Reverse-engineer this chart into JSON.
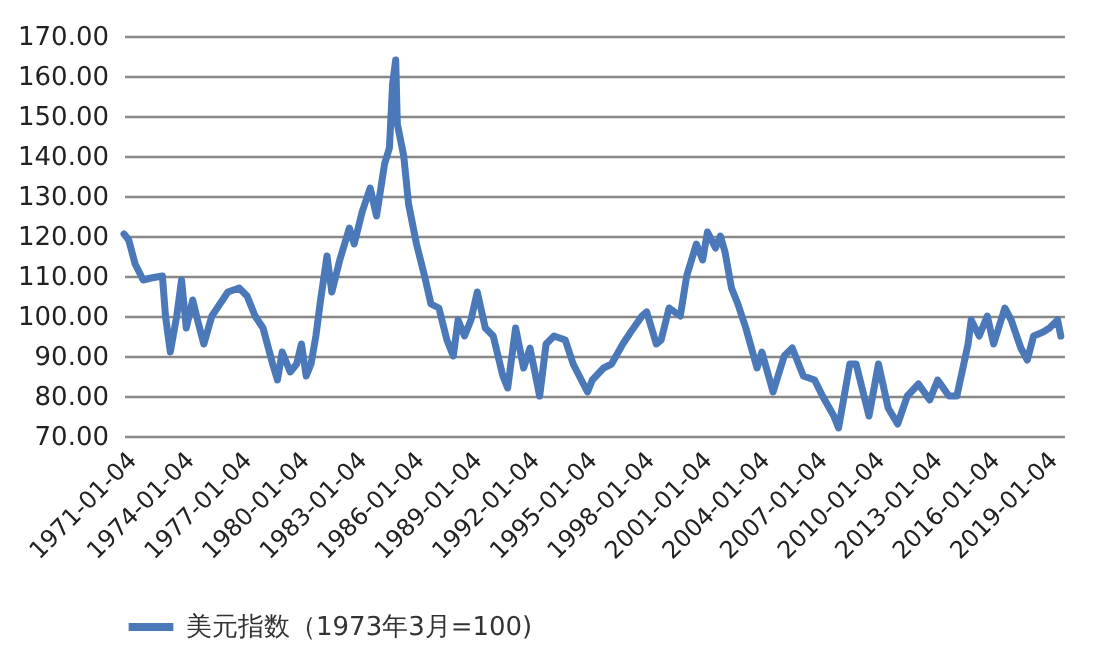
{
  "chart_data": {
    "type": "line",
    "legend": "bottom",
    "grid": "y",
    "marker": "none",
    "line_style": "solid",
    "ylim": [
      70,
      170
    ],
    "yticks": [
      {
        "value": 70,
        "label": "70.00"
      },
      {
        "value": 80,
        "label": "80.00"
      },
      {
        "value": 90,
        "label": "90.00"
      },
      {
        "value": 100,
        "label": "100.00"
      },
      {
        "value": 110,
        "label": "110.00"
      },
      {
        "value": 120,
        "label": "120.00"
      },
      {
        "value": 130,
        "label": "130.00"
      },
      {
        "value": 140,
        "label": "140.00"
      },
      {
        "value": 150,
        "label": "150.00"
      },
      {
        "value": 160,
        "label": "160.00"
      },
      {
        "value": 170,
        "label": "170.00"
      }
    ],
    "xlim": [
      "1971-01-01",
      "2020-01-01"
    ],
    "xticks": [
      {
        "value": "1971-01-04",
        "label": "1971-01-04"
      },
      {
        "value": "1974-01-04",
        "label": "1974-01-04"
      },
      {
        "value": "1977-01-04",
        "label": "1977-01-04"
      },
      {
        "value": "1980-01-04",
        "label": "1980-01-04"
      },
      {
        "value": "1983-01-04",
        "label": "1983-01-04"
      },
      {
        "value": "1986-01-04",
        "label": "1986-01-04"
      },
      {
        "value": "1989-01-04",
        "label": "1989-01-04"
      },
      {
        "value": "1992-01-04",
        "label": "1992-01-04"
      },
      {
        "value": "1995-01-04",
        "label": "1995-01-04"
      },
      {
        "value": "1998-01-04",
        "label": "1998-01-04"
      },
      {
        "value": "2001-01-04",
        "label": "2001-01-04"
      },
      {
        "value": "2004-01-04",
        "label": "2004-01-04"
      },
      {
        "value": "2007-01-04",
        "label": "2007-01-04"
      },
      {
        "value": "2010-01-04",
        "label": "2010-01-04"
      },
      {
        "value": "2013-01-04",
        "label": "2013-01-04"
      },
      {
        "value": "2016-01-04",
        "label": "2016-01-04"
      },
      {
        "value": "2019-01-04",
        "label": "2019-01-04"
      }
    ],
    "x": [
      "1971-01",
      "1971-04",
      "1971-08",
      "1972-01",
      "1972-06",
      "1973-01",
      "1973-03",
      "1973-06",
      "1973-10",
      "1974-01",
      "1974-04",
      "1974-08",
      "1974-11",
      "1975-03",
      "1975-08",
      "1976-01",
      "1976-06",
      "1977-01",
      "1977-06",
      "1977-11",
      "1978-04",
      "1978-10",
      "1979-01",
      "1979-04",
      "1979-09",
      "1980-01",
      "1980-04",
      "1980-07",
      "1980-10",
      "1981-01",
      "1981-04",
      "1981-08",
      "1981-11",
      "1982-04",
      "1982-10",
      "1983-01",
      "1983-06",
      "1983-11",
      "1984-03",
      "1984-08",
      "1984-11",
      "1985-01",
      "1985-03",
      "1985-04",
      "1985-08",
      "1985-11",
      "1986-04",
      "1986-09",
      "1987-01",
      "1987-06",
      "1987-11",
      "1988-03",
      "1988-06",
      "1988-10",
      "1989-02",
      "1989-06",
      "1989-11",
      "1990-04",
      "1990-10",
      "1991-01",
      "1991-06",
      "1991-11",
      "1992-03",
      "1992-09",
      "1993-01",
      "1993-06",
      "1994-01",
      "1994-06",
      "1995-03",
      "1995-06",
      "1996-01",
      "1996-06",
      "1997-01",
      "1997-06",
      "1998-01",
      "1998-04",
      "1998-10",
      "1999-01",
      "1999-06",
      "2000-01",
      "2000-05",
      "2000-11",
      "2001-03",
      "2001-06",
      "2001-11",
      "2002-02",
      "2002-05",
      "2002-09",
      "2003-01",
      "2003-06",
      "2004-01",
      "2004-04",
      "2004-11",
      "2005-06",
      "2005-11",
      "2006-06",
      "2007-01",
      "2007-06",
      "2008-01",
      "2008-04",
      "2008-11",
      "2009-03",
      "2009-11",
      "2010-05",
      "2010-11",
      "2011-05",
      "2011-11",
      "2012-06",
      "2013-01",
      "2013-06",
      "2014-01",
      "2014-06",
      "2015-01",
      "2015-03",
      "2015-08",
      "2016-01",
      "2016-05",
      "2016-12",
      "2017-04",
      "2017-10",
      "2018-02",
      "2018-06",
      "2018-12",
      "2019-04",
      "2019-09",
      "2019-11"
    ],
    "series": [
      {
        "name": "美元指数（1973年3月=100)",
        "color": "#4a78b8",
        "values": [
          120.5,
          119,
          113,
          109,
          109.5,
          110,
          100,
          91,
          100,
          109,
          97,
          104,
          99,
          93,
          100,
          103,
          106,
          107,
          105,
          100,
          97,
          88,
          84,
          91,
          86,
          88,
          93,
          85,
          88,
          95,
          104,
          115,
          106,
          114,
          122,
          118,
          126,
          132,
          125,
          138,
          142,
          158,
          164,
          148,
          140,
          128,
          118,
          110,
          103,
          102,
          94,
          90,
          99,
          95,
          99,
          106,
          97,
          95,
          85,
          82,
          97,
          87,
          92,
          80,
          93,
          95,
          94,
          88,
          81,
          84,
          87,
          88,
          93,
          96,
          100,
          101,
          93,
          94,
          102,
          100,
          110,
          118,
          114,
          121,
          117,
          120,
          116,
          107,
          103,
          97,
          87,
          91,
          81,
          90,
          92,
          85,
          84,
          80,
          75,
          72,
          88,
          88,
          75,
          88,
          77,
          73,
          80,
          83,
          79,
          84,
          80,
          80,
          93,
          99,
          95,
          100,
          93,
          102,
          99,
          92,
          89,
          95,
          96,
          97,
          99,
          95
        ]
      }
    ]
  }
}
